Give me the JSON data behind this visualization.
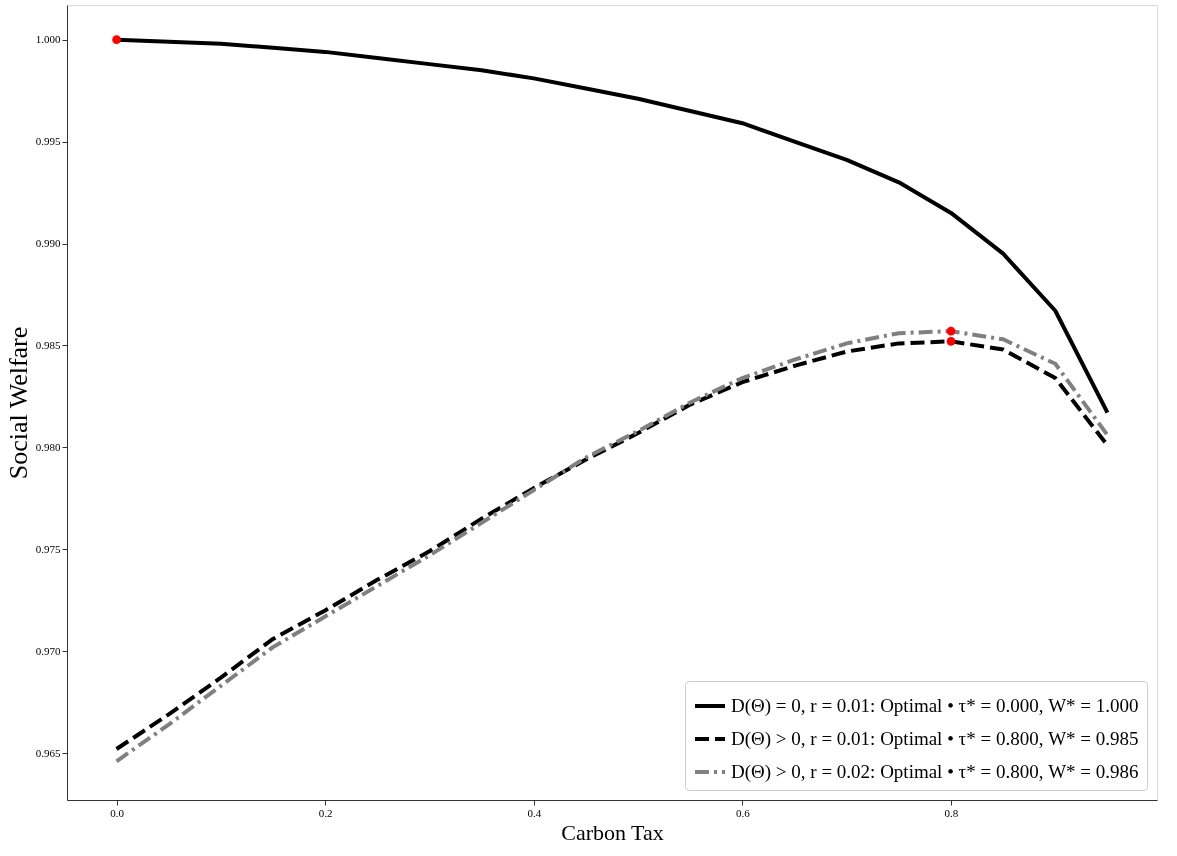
{
  "chart_data": {
    "type": "line",
    "xlabel": "Carbon Tax",
    "ylabel": "Social Welfare",
    "x": [
      0,
      0.05,
      0.1,
      0.15,
      0.2,
      0.25,
      0.3,
      0.35,
      0.4,
      0.45,
      0.5,
      0.55,
      0.6,
      0.65,
      0.7,
      0.75,
      0.8,
      0.85,
      0.9,
      0.95
    ],
    "series": [
      {
        "name": "D(Θ) = 0, r = 0.01: Optimal • τ* = 0.000, W* = 1.000",
        "color": "#000000",
        "line_style": "solid",
        "values": [
          1.0,
          0.9999,
          0.9998,
          0.9996,
          0.9994,
          0.9991,
          0.9988,
          0.9985,
          0.9981,
          0.9976,
          0.9971,
          0.9965,
          0.9959,
          0.995,
          0.9941,
          0.993,
          0.9915,
          0.9895,
          0.9867,
          0.9817
        ]
      },
      {
        "name": "D(Θ) > 0, r = 0.01: Optimal • τ* = 0.800, W* = 0.985",
        "color": "#000000",
        "line_style": "dashed",
        "values": [
          0.9652,
          0.9669,
          0.9687,
          0.9706,
          0.972,
          0.9735,
          0.9749,
          0.9765,
          0.978,
          0.9794,
          0.9807,
          0.9821,
          0.9832,
          0.984,
          0.9847,
          0.9851,
          0.9852,
          0.9848,
          0.9834,
          0.9801
        ]
      },
      {
        "name": "D(Θ) > 0, r = 0.02: Optimal • τ* = 0.800, W* = 0.986",
        "color": "#808080",
        "line_style": "dashdot",
        "values": [
          0.9646,
          0.9664,
          0.9683,
          0.9702,
          0.9717,
          0.9732,
          0.9747,
          0.9763,
          0.9779,
          0.9795,
          0.9808,
          0.9822,
          0.9834,
          0.9843,
          0.9851,
          0.9856,
          0.9857,
          0.9853,
          0.9841,
          0.9806
        ]
      },
      {
        "type": "scatter",
        "color": "#ff0000",
        "marker": "circle",
        "values": [
          1.0,
          null,
          null,
          null,
          null,
          null,
          null,
          null,
          null,
          null,
          null,
          null,
          null,
          null,
          null,
          null,
          null,
          null,
          null,
          null
        ]
      },
      {
        "type": "scatter",
        "color": "#ff0000",
        "marker": "circle",
        "values": [
          null,
          null,
          null,
          null,
          null,
          null,
          null,
          null,
          null,
          null,
          null,
          null,
          null,
          null,
          null,
          null,
          0.9852,
          null,
          null,
          null
        ]
      },
      {
        "type": "scatter",
        "color": "#ff0000",
        "marker": "circle",
        "values": [
          null,
          null,
          null,
          null,
          null,
          null,
          null,
          null,
          null,
          null,
          null,
          null,
          null,
          null,
          null,
          null,
          0.9857,
          null,
          null,
          null
        ]
      }
    ],
    "xlim": [
      -0.0475,
      0.9975
    ],
    "ylim": [
      0.9627,
      1.0017
    ],
    "xticks": [
      {
        "value": 0,
        "label": "0.0"
      },
      0.2,
      0.4,
      0.6,
      0.8
    ],
    "yticks": [
      0.965,
      {
        "value": 0.97,
        "label": "0.970"
      },
      0.975,
      {
        "value": 0.98,
        "label": "0.980"
      },
      0.985,
      {
        "value": 0.99,
        "label": "0.990"
      },
      0.995,
      {
        "value": 1,
        "label": "1.000"
      }
    ],
    "grid": false,
    "legend": "bottom right"
  }
}
